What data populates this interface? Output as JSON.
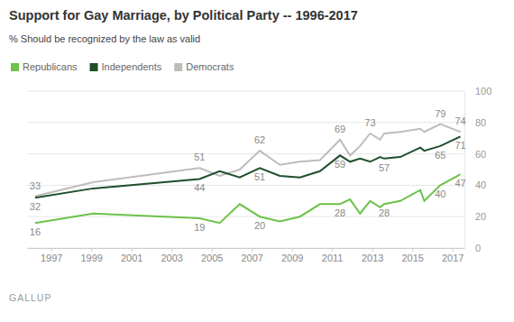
{
  "chart_data": {
    "type": "line",
    "title": "Support for Gay Marriage, by Political Party -- 1996-2017",
    "subtitle": "% Should be recognized by the law as valid",
    "source": "GALLUP",
    "x": [
      1996.2,
      1999.1,
      2004.4,
      2005.4,
      2006.4,
      2007.4,
      2008.4,
      2009.4,
      2010.4,
      2011.4,
      2011.9,
      2012.4,
      2012.9,
      2013.4,
      2013.6,
      2014.4,
      2015.4,
      2015.6,
      2016.4,
      2017.4
    ],
    "series": [
      {
        "name": "Republicans",
        "color": "#6cc24a",
        "values": [
          16,
          22,
          19,
          16,
          28,
          20,
          17,
          20,
          28,
          28,
          31,
          22,
          30,
          26,
          28,
          30,
          37,
          30,
          40,
          47
        ],
        "value_labels": [
          "16",
          null,
          "19",
          null,
          null,
          "20",
          null,
          null,
          null,
          "28",
          null,
          null,
          null,
          null,
          "28",
          null,
          null,
          null,
          "40",
          "47"
        ]
      },
      {
        "name": "Independents",
        "color": "#1f4e2c",
        "values": [
          32,
          38,
          44,
          49,
          45,
          51,
          46,
          45,
          49,
          59,
          55,
          57,
          55,
          58,
          57,
          58,
          64,
          62,
          65,
          71
        ],
        "value_labels": [
          "32",
          null,
          "44",
          null,
          null,
          "51",
          null,
          null,
          null,
          "59",
          null,
          null,
          null,
          null,
          "57",
          null,
          null,
          null,
          "65",
          "71"
        ]
      },
      {
        "name": "Democrats",
        "color": "#bdbdbd",
        "values": [
          33,
          42,
          51,
          46,
          50,
          62,
          53,
          55,
          56,
          69,
          59,
          65,
          73,
          69,
          73,
          74,
          76,
          74,
          79,
          74
        ],
        "value_labels": [
          "33",
          null,
          "51",
          null,
          null,
          "62",
          null,
          null,
          null,
          "69",
          null,
          null,
          "73",
          null,
          null,
          null,
          null,
          null,
          "79",
          "74"
        ]
      }
    ],
    "xlim": [
      1995.8,
      2017.6
    ],
    "xticks": [
      1997,
      1999,
      2001,
      2003,
      2005,
      2007,
      2009,
      2011,
      2013,
      2015,
      2017
    ],
    "ylim": [
      0,
      100
    ],
    "yticks": [
      0,
      20,
      40,
      60,
      80,
      100
    ],
    "grid": true,
    "legend": "top-left",
    "data_labels": true
  }
}
